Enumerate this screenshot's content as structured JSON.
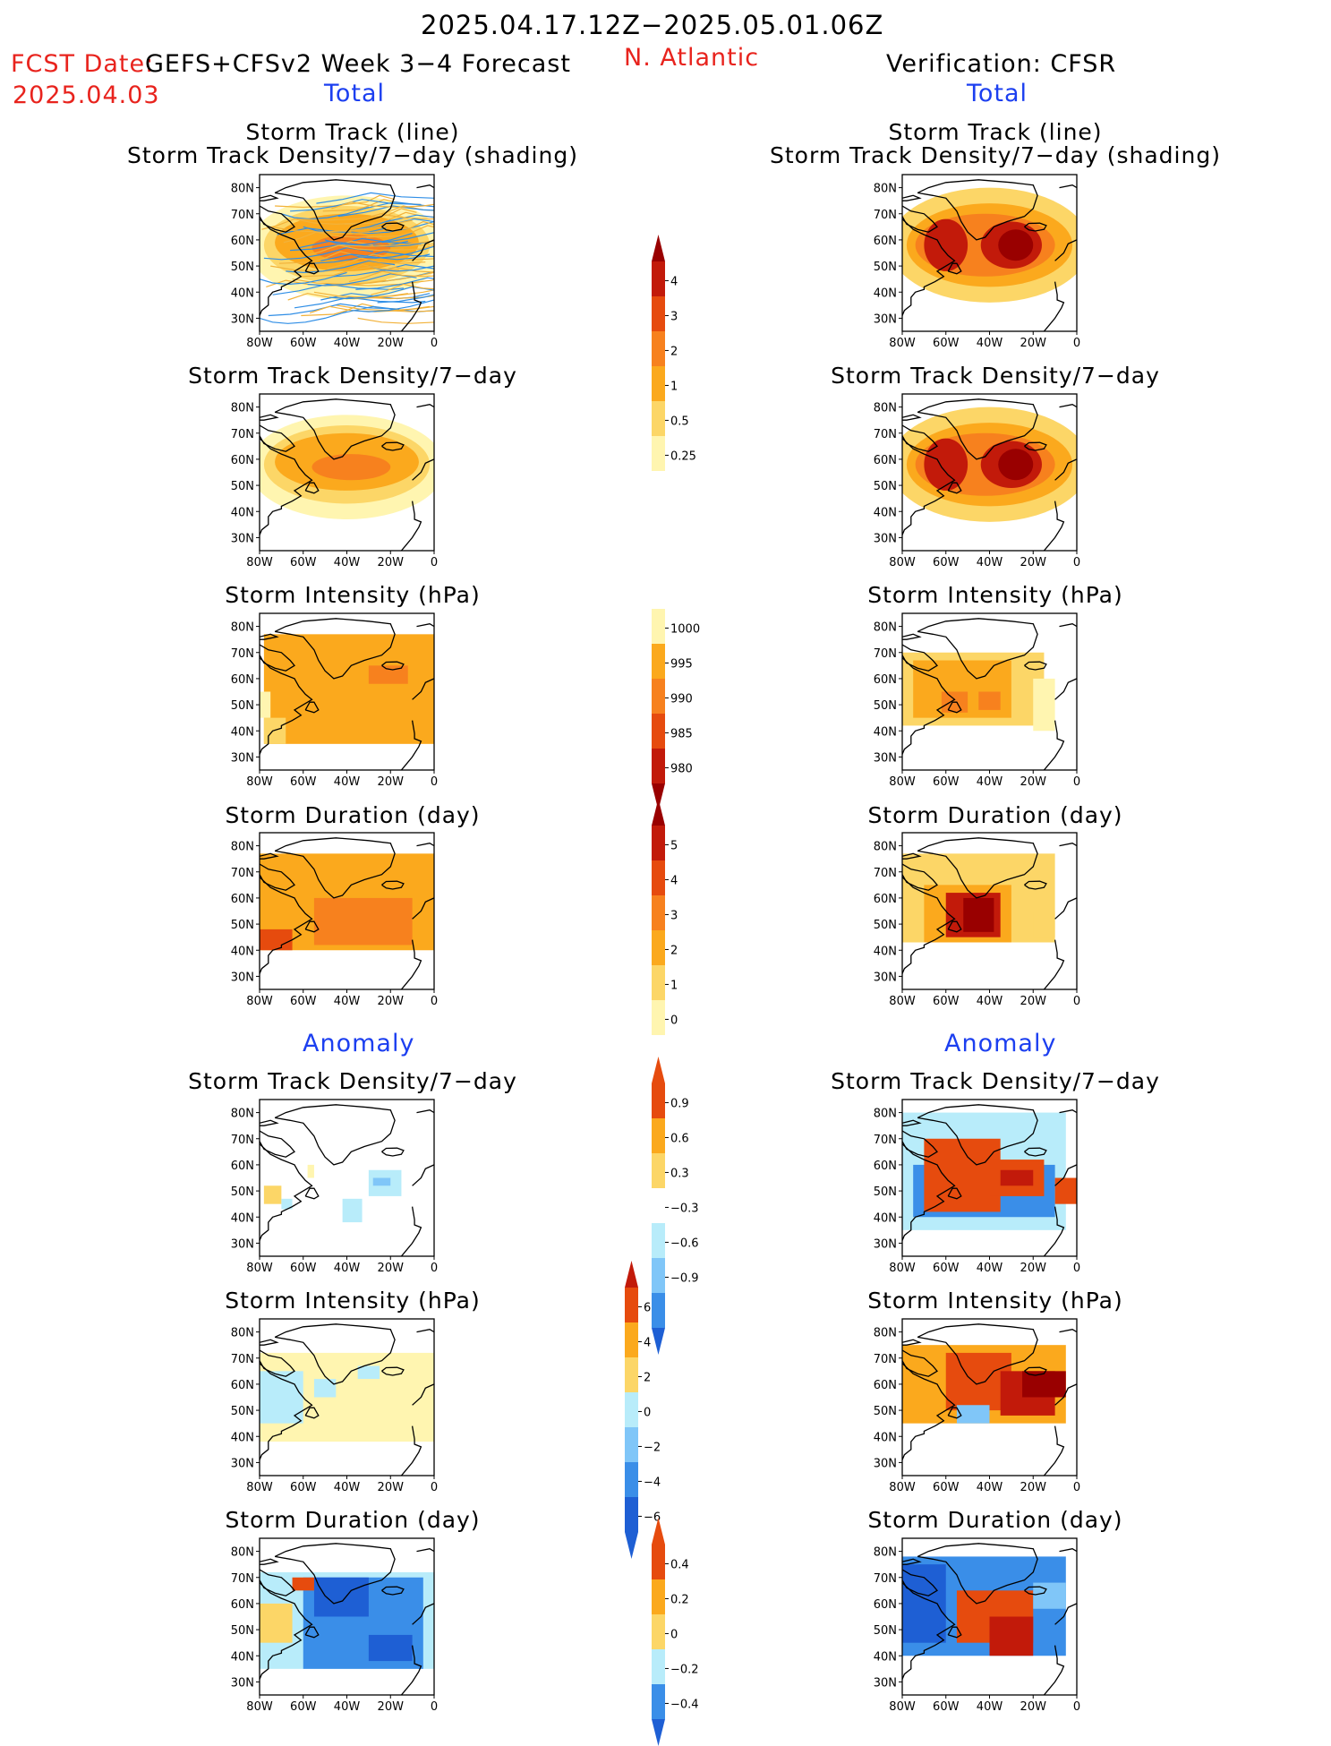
{
  "header": {
    "date_range": "2025.04.17.12Z−2025.05.01.06Z",
    "fcst_date_label": "FCST Date:",
    "fcst_date_value": "2025.04.03",
    "model_label": "GEFS+CFSv2 Week 3−4 Forecast",
    "region": "N. Atlantic",
    "verification_label": "Verification: CFSR"
  },
  "sections": {
    "total": "Total",
    "anomaly": "Anomaly"
  },
  "panel_titles": {
    "track_line": "Storm Track (line)",
    "track_shading": "Storm Track Density/7−day (shading)",
    "density": "Storm Track Density/7−day",
    "intensity": "Storm Intensity (hPa)",
    "duration": "Storm Duration (day)"
  },
  "axes": {
    "lon_labels": [
      "80W",
      "60W",
      "40W",
      "20W",
      "0"
    ],
    "lat_labels": [
      "80N",
      "70N",
      "60N",
      "50N",
      "40N",
      "30N"
    ]
  },
  "colorbars": {
    "density_total": [
      "0.25",
      "0.5",
      "1",
      "2",
      "3",
      "4"
    ],
    "intensity_total": [
      "1000",
      "995",
      "990",
      "985",
      "980"
    ],
    "duration_total": [
      "0",
      "1",
      "2",
      "3",
      "4",
      "5"
    ],
    "density_anom": [
      "0.9",
      "0.6",
      "0.3",
      "−0.3",
      "−0.6",
      "−0.9"
    ],
    "intensity_anom": [
      "6",
      "4",
      "2",
      "0",
      "−2",
      "−4",
      "−6"
    ],
    "duration_anom": [
      "0.4",
      "0.2",
      "0",
      "−0.2",
      "−0.4"
    ]
  },
  "colors": {
    "red_text": "#e8231d",
    "blue_text": "#1c3ff0",
    "warm_1": "#fff5b0",
    "warm_2": "#fcd667",
    "warm_3": "#fba91d",
    "warm_4": "#f7811e",
    "warm_5": "#e64b0e",
    "warm_6": "#c21a0a",
    "warm_7": "#990000",
    "cool_1": "#b8ecfa",
    "cool_2": "#80c6f8",
    "cool_3": "#3a8ee8",
    "cool_4": "#1e5fd4",
    "track_blue": "#2f8ee6",
    "track_orange": "#f2b23a"
  }
}
